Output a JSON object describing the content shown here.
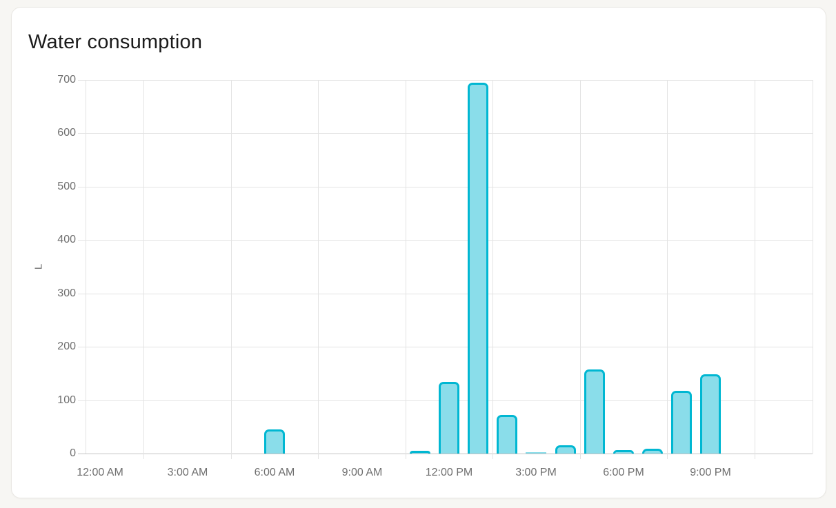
{
  "card": {
    "title": "Water consumption"
  },
  "chart_data": {
    "type": "bar",
    "title": "Water consumption",
    "xlabel": "",
    "ylabel": "L",
    "ylim": [
      0,
      700
    ],
    "y_ticks": [
      0,
      100,
      200,
      300,
      400,
      500,
      600,
      700
    ],
    "x_tick_labels": [
      "12:00 AM",
      "3:00 AM",
      "6:00 AM",
      "9:00 AM",
      "12:00 PM",
      "3:00 PM",
      "6:00 PM",
      "9:00 PM"
    ],
    "x_tick_hours": [
      0,
      3,
      6,
      9,
      12,
      15,
      18,
      21
    ],
    "grid": true,
    "legend_position": "none",
    "axis_hours_range": [
      -0.5,
      24.5
    ],
    "gridline_hours": [
      1.5,
      4.5,
      7.5,
      10.5,
      13.5,
      16.5,
      19.5,
      22.5
    ],
    "series_name": "Water consumption (L)",
    "bars": [
      {
        "hour": 6,
        "value": 45
      },
      {
        "hour": 11,
        "value": 5
      },
      {
        "hour": 12,
        "value": 134
      },
      {
        "hour": 13,
        "value": 695
      },
      {
        "hour": 14,
        "value": 72
      },
      {
        "hour": 15,
        "value": 2
      },
      {
        "hour": 16,
        "value": 15
      },
      {
        "hour": 17,
        "value": 158
      },
      {
        "hour": 18,
        "value": 6
      },
      {
        "hour": 19,
        "value": 9
      },
      {
        "hour": 20,
        "value": 118
      },
      {
        "hour": 21,
        "value": 149
      }
    ],
    "colors": {
      "bar_fill": "#8ADDEA",
      "bar_stroke": "#00B7D2",
      "axis_text": "#6F6F6F",
      "gridline": "#E3E3E3",
      "baseline": "#C2C2C2",
      "title_text": "#1B1B1B",
      "card_bg": "#FFFFFF",
      "page_bg": "#F7F6F3"
    }
  }
}
